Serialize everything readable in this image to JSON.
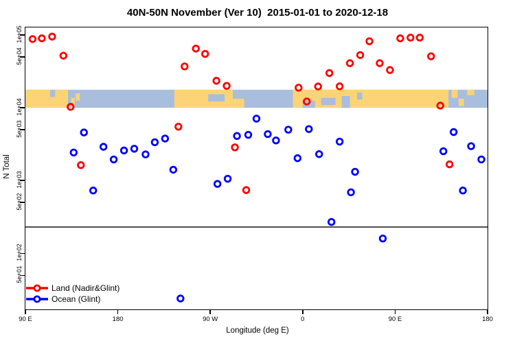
{
  "chart_data": {
    "type": "scatter",
    "title": "40N-50N November (Ver 10)  2015-01-01 to 2020-12-18",
    "xlabel": "Longitude (deg E)",
    "ylabel": "N Total",
    "x_axis": {
      "min": 90,
      "max": 540,
      "ticks": [
        {
          "pos": 90,
          "label": "90 E"
        },
        {
          "pos": 180,
          "label": "180"
        },
        {
          "pos": 270,
          "label": "90 W"
        },
        {
          "pos": 360,
          "label": "0"
        },
        {
          "pos": 450,
          "label": "90 E"
        },
        {
          "pos": 540,
          "label": "180"
        }
      ]
    },
    "y_axis": {
      "scale": "log",
      "min": 17,
      "max": 127000,
      "ticks": [
        {
          "value": 100000,
          "label": "1e+05"
        },
        {
          "value": 50000,
          "label": "5e+04"
        },
        {
          "value": 10000,
          "label": "1e+04"
        },
        {
          "value": 5000,
          "label": "5e+03"
        },
        {
          "value": 1000,
          "label": "1e+03"
        },
        {
          "value": 500,
          "label": "5e+02"
        },
        {
          "value": 100,
          "label": "1e+02"
        },
        {
          "value": 50,
          "label": "5e+01"
        }
      ]
    },
    "threshold_line": {
      "value": 230
    },
    "map_band": {
      "value_top": 17700,
      "value_bottom": 10000,
      "land_color": "#fcd475",
      "ocean_color": "#a8bedc",
      "land_segments": [
        {
          "from": 90,
          "to": 131.5,
          "top": 0,
          "bottom": 1
        },
        {
          "from": 134.5,
          "to": 138,
          "top": 0.45,
          "bottom": 0.95
        },
        {
          "from": 139,
          "to": 143,
          "top": 0.2,
          "bottom": 0.6
        },
        {
          "from": 235,
          "to": 292,
          "top": 0,
          "bottom": 1
        },
        {
          "from": 292,
          "to": 303,
          "top": 0.5,
          "bottom": 1
        },
        {
          "from": 350.5,
          "to": 502,
          "top": 0,
          "bottom": 1
        },
        {
          "from": 505,
          "to": 511,
          "top": 0,
          "bottom": 0.45
        },
        {
          "from": 512,
          "to": 517,
          "top": 0.5,
          "bottom": 0.9
        },
        {
          "from": 520,
          "to": 527,
          "top": 0,
          "bottom": 0.3
        }
      ],
      "ocean_patches": [
        {
          "from": 114,
          "to": 119,
          "top": 0,
          "bottom": 0.4
        },
        {
          "from": 268,
          "to": 284,
          "top": 0.25,
          "bottom": 0.65
        },
        {
          "from": 360,
          "to": 372,
          "top": 0.62,
          "bottom": 1
        },
        {
          "from": 378,
          "to": 392,
          "top": 0.45,
          "bottom": 0.85
        },
        {
          "from": 398,
          "to": 406,
          "top": 0.35,
          "bottom": 1
        },
        {
          "from": 413,
          "to": 418,
          "top": 0.15,
          "bottom": 0.55
        }
      ]
    },
    "series": [
      {
        "name": "Land (Nadir&Glint)",
        "color": "#ff0000",
        "points": [
          [
            97,
            88000
          ],
          [
            106,
            90000
          ],
          [
            116,
            95000
          ],
          [
            127,
            52000
          ],
          [
            134,
            10300
          ],
          [
            144,
            1630
          ],
          [
            239,
            5500
          ],
          [
            245,
            37000
          ],
          [
            256,
            65000
          ],
          [
            265,
            55000
          ],
          [
            276,
            23500
          ],
          [
            286,
            20000
          ],
          [
            294,
            2860
          ],
          [
            305,
            740
          ],
          [
            356,
            18900
          ],
          [
            364,
            12200
          ],
          [
            375,
            19600
          ],
          [
            386,
            30000
          ],
          [
            396,
            19700
          ],
          [
            406,
            41000
          ],
          [
            416,
            53000
          ],
          [
            425,
            82000
          ],
          [
            435,
            41000
          ],
          [
            445,
            33000
          ],
          [
            455,
            90000
          ],
          [
            465,
            92000
          ],
          [
            474,
            92000
          ],
          [
            485,
            51000
          ],
          [
            494,
            10700
          ],
          [
            503,
            1670
          ]
        ]
      },
      {
        "name": "Ocean (Glint)",
        "color": "#0000ff",
        "points": [
          [
            137,
            2430
          ],
          [
            147,
            4580
          ],
          [
            156,
            730
          ],
          [
            166,
            2910
          ],
          [
            176,
            1950
          ],
          [
            186,
            2590
          ],
          [
            196,
            2740
          ],
          [
            207,
            2290
          ],
          [
            216,
            3360
          ],
          [
            226,
            3780
          ],
          [
            234,
            1410
          ],
          [
            241,
            24
          ],
          [
            277,
            900
          ],
          [
            287,
            1060
          ],
          [
            296,
            4100
          ],
          [
            307,
            4250
          ],
          [
            315,
            7100
          ],
          [
            326,
            4350
          ],
          [
            334,
            3560
          ],
          [
            346,
            5000
          ],
          [
            355,
            2030
          ],
          [
            366,
            5100
          ],
          [
            376,
            2310
          ],
          [
            388,
            270
          ],
          [
            396,
            3430
          ],
          [
            407,
            690
          ],
          [
            411,
            1320
          ],
          [
            438,
            160
          ],
          [
            497,
            2530
          ],
          [
            507,
            4640
          ],
          [
            516,
            730
          ],
          [
            524,
            2970
          ],
          [
            534,
            1950
          ]
        ]
      }
    ]
  }
}
